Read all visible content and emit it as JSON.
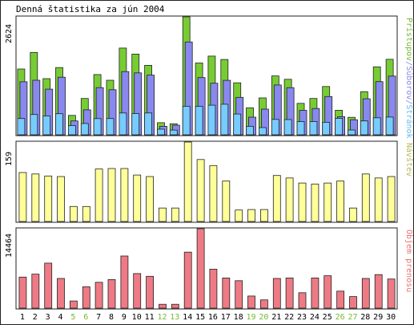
{
  "chart_data": {
    "type": "bar",
    "title": "Denná štatistika za jún 2004",
    "categories": [
      "1",
      "2",
      "3",
      "4",
      "5",
      "6",
      "7",
      "8",
      "9",
      "10",
      "11",
      "12",
      "13",
      "14",
      "15",
      "16",
      "17",
      "18",
      "19",
      "20",
      "21",
      "22",
      "23",
      "24",
      "25",
      "26",
      "27",
      "28",
      "29",
      "30"
    ],
    "weekend_days": [
      "5",
      "6",
      "12",
      "13",
      "19",
      "20",
      "26",
      "27"
    ],
    "panels": [
      {
        "key": "hits",
        "y_max_label": "2624",
        "ylim": [
          0,
          2624
        ],
        "legend": [
          {
            "text": "Prístupov",
            "color": "#77b833"
          },
          {
            "text": "Súborov",
            "color": "#8888ee"
          },
          {
            "text": "Stránok",
            "color": "#66bbee"
          }
        ],
        "legend_separator": "/",
        "series": [
          {
            "name": "Prístupov",
            "color": "#77cc33",
            "values": [
              1463,
              1833,
              1250,
              1496,
              432,
              809,
              1340,
              1213,
              1930,
              1795,
              1546,
              270,
              246,
              2624,
              1598,
              1751,
              1676,
              1157,
              601,
              822,
              1311,
              1236,
              700,
              809,
              1074,
              546,
              389,
              961,
              1512,
              1680
            ]
          },
          {
            "name": "Súborov",
            "color": "#8888ee",
            "values": [
              1180,
              1213,
              1015,
              1282,
              309,
              556,
              1049,
              1003,
              1406,
              1378,
              1328,
              190,
              215,
              2065,
              1272,
              1148,
              1212,
              833,
              393,
              571,
              1109,
              1049,
              544,
              586,
              852,
              404,
              335,
              801,
              1184,
              1307
            ]
          },
          {
            "name": "Stránok",
            "color": "#77ccff",
            "values": [
              362,
              452,
              420,
              469,
              206,
              251,
              360,
              362,
              485,
              473,
              485,
              125,
              106,
              635,
              634,
              659,
              680,
              462,
              190,
              160,
              343,
              339,
              294,
              294,
              278,
              368,
              107,
              308,
              378,
              395
            ]
          }
        ]
      },
      {
        "key": "visits",
        "y_max_label": "159",
        "ylim": [
          0,
          159
        ],
        "legend": [
          {
            "text": "Návštev",
            "color": "#b8b85a"
          }
        ],
        "series": [
          {
            "name": "Návštev",
            "color": "#ffff99",
            "values": [
              98,
              95,
              91,
              90,
              30,
              30,
              105,
              106,
              106,
              93,
              90,
              27,
              27,
              159,
              124,
              112,
              81,
              23,
              24,
              24,
              92,
              87,
              77,
              75,
              77,
              81,
              27,
              95,
              87,
              90
            ]
          }
        ]
      },
      {
        "key": "traffic",
        "y_max_label": "14464",
        "ylim": [
          0,
          14464
        ],
        "legend": [
          {
            "text": "Objem prenosu",
            "color": "#ee6f6f"
          }
        ],
        "series": [
          {
            "name": "Objem prenosu",
            "color": "#ee7a85",
            "values": [
              5650,
              6200,
              8200,
              5400,
              1300,
              3900,
              4700,
              5200,
              9500,
              6300,
              5800,
              700,
              700,
              10200,
              14464,
              7100,
              5500,
              5000,
              2200,
              1500,
              5400,
              5500,
              2800,
              5500,
              5900,
              3100,
              2100,
              5400,
              6100,
              5300
            ]
          }
        ]
      }
    ]
  }
}
